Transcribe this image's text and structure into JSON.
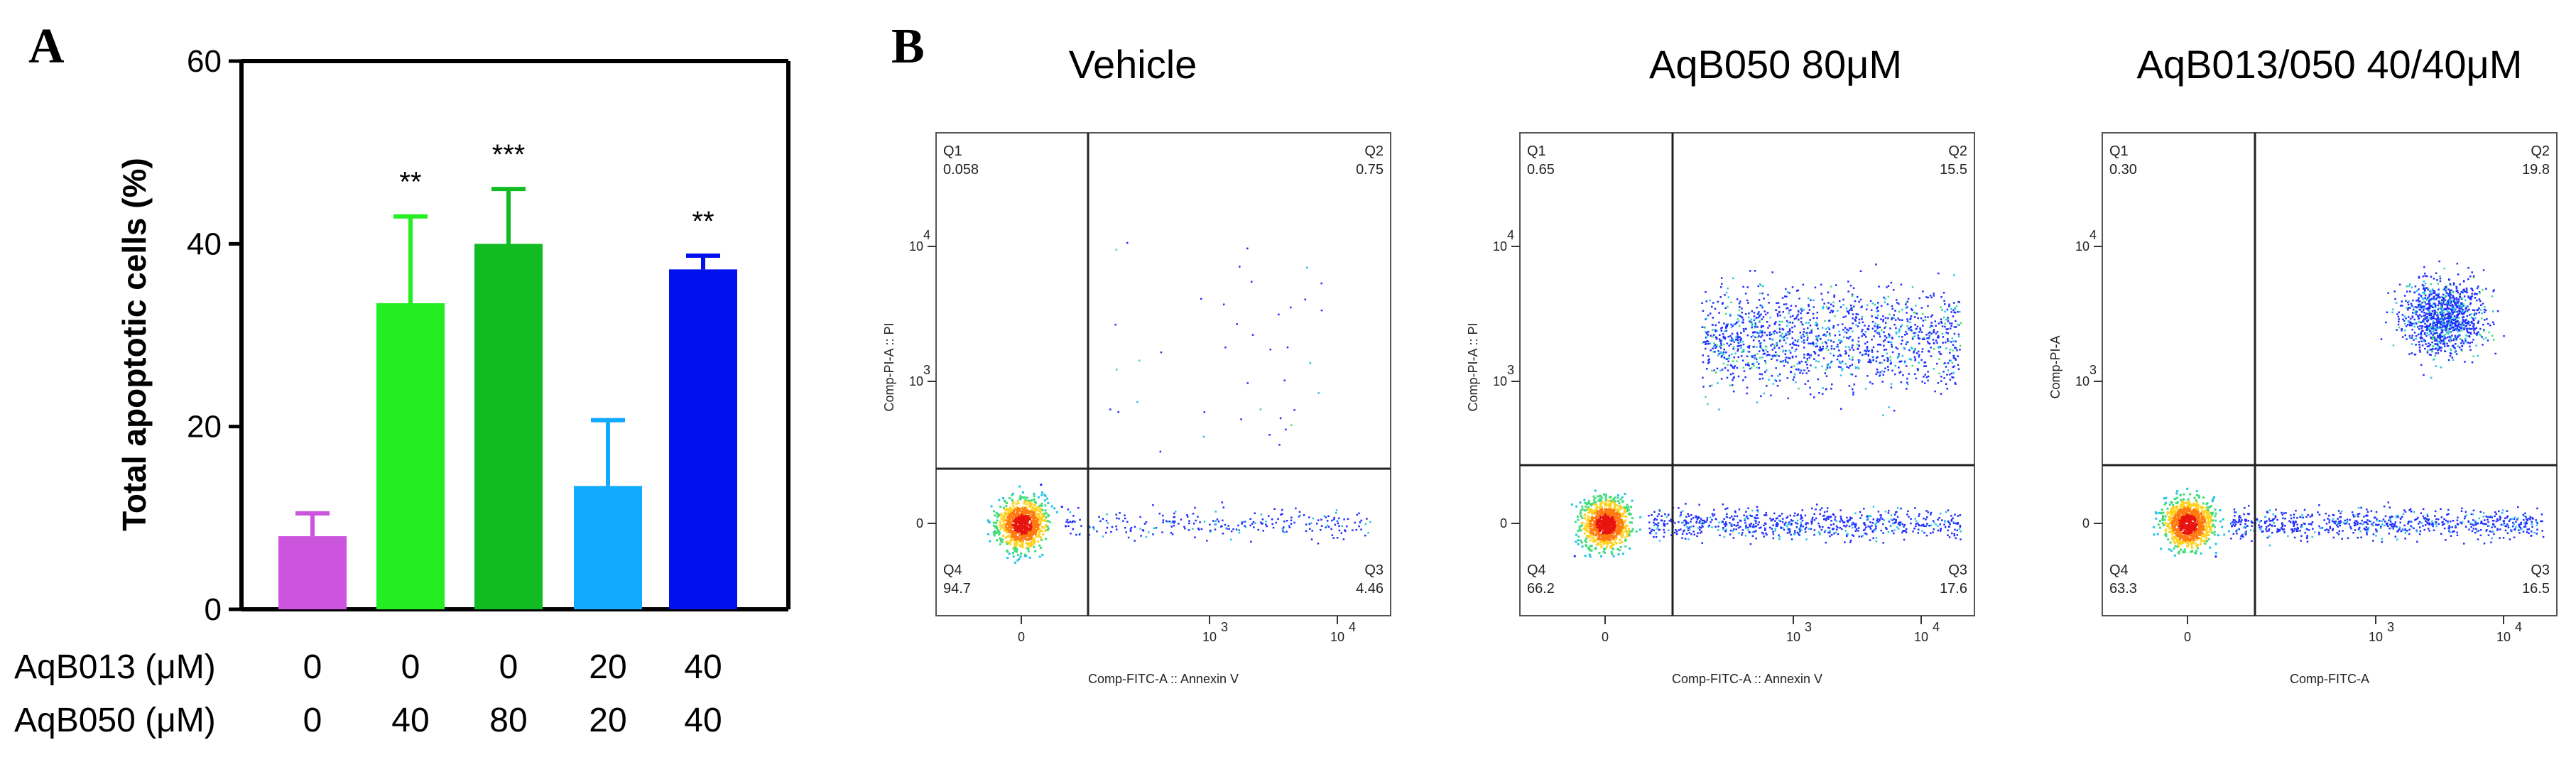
{
  "panels": {
    "a_letter": "A",
    "b_letter": "B"
  },
  "chart_data": [
    {
      "type": "bar",
      "ylabel": "Total apoptotic cells (%)",
      "ylim": [
        0,
        60
      ],
      "yticks": [
        "0",
        "20",
        "40",
        "60"
      ],
      "values": [
        8,
        33.5,
        40,
        13.5,
        37.2
      ],
      "errors": [
        2.5,
        9.5,
        6,
        7.2,
        1.5
      ],
      "colors": [
        "#cc55dd",
        "#22ee22",
        "#11bb22",
        "#11aaff",
        "#0011ee"
      ],
      "significance": [
        "",
        "**",
        "***",
        "",
        "**"
      ],
      "conditions": [
        {
          "label": "AqB013 (μM)",
          "values": [
            "0",
            "0",
            "0",
            "20",
            "40"
          ]
        },
        {
          "label": "AqB050 (μM)",
          "values": [
            "0",
            "40",
            "80",
            "20",
            "40"
          ]
        }
      ]
    },
    {
      "type": "scatter",
      "title": "Vehicle",
      "xlabel": "Comp-FITC-A :: Annexin V",
      "ylabel": "Comp-PI-A :: PI",
      "quadrants": {
        "Q1": "0.058",
        "Q2": "0.75",
        "Q3": "4.46",
        "Q4": "94.7"
      }
    },
    {
      "type": "scatter",
      "title": "AqB050 80μM",
      "xlabel": "Comp-FITC-A :: Annexin V",
      "ylabel": "Comp-PI-A :: PI",
      "quadrants": {
        "Q1": "0.65",
        "Q2": "15.5",
        "Q3": "17.6",
        "Q4": "66.2"
      }
    },
    {
      "type": "scatter",
      "title": "AqB013/050 40/40μM",
      "xlabel": "Comp-FITC-A",
      "ylabel": "Comp-PI-A",
      "quadrants": {
        "Q1": "0.30",
        "Q2": "19.8",
        "Q3": "16.5",
        "Q4": "63.3"
      }
    }
  ],
  "flow_axis_ticks": {
    "x": [
      "0",
      "10",
      "3",
      "10",
      "4"
    ],
    "y": [
      "0",
      "10",
      "3",
      "10",
      "4"
    ]
  },
  "flow_tick_text": {
    "zero": "0",
    "ten": "10",
    "exp3": "3",
    "exp4": "4"
  },
  "quadrant_names": [
    "Q1",
    "Q2",
    "Q3",
    "Q4"
  ]
}
